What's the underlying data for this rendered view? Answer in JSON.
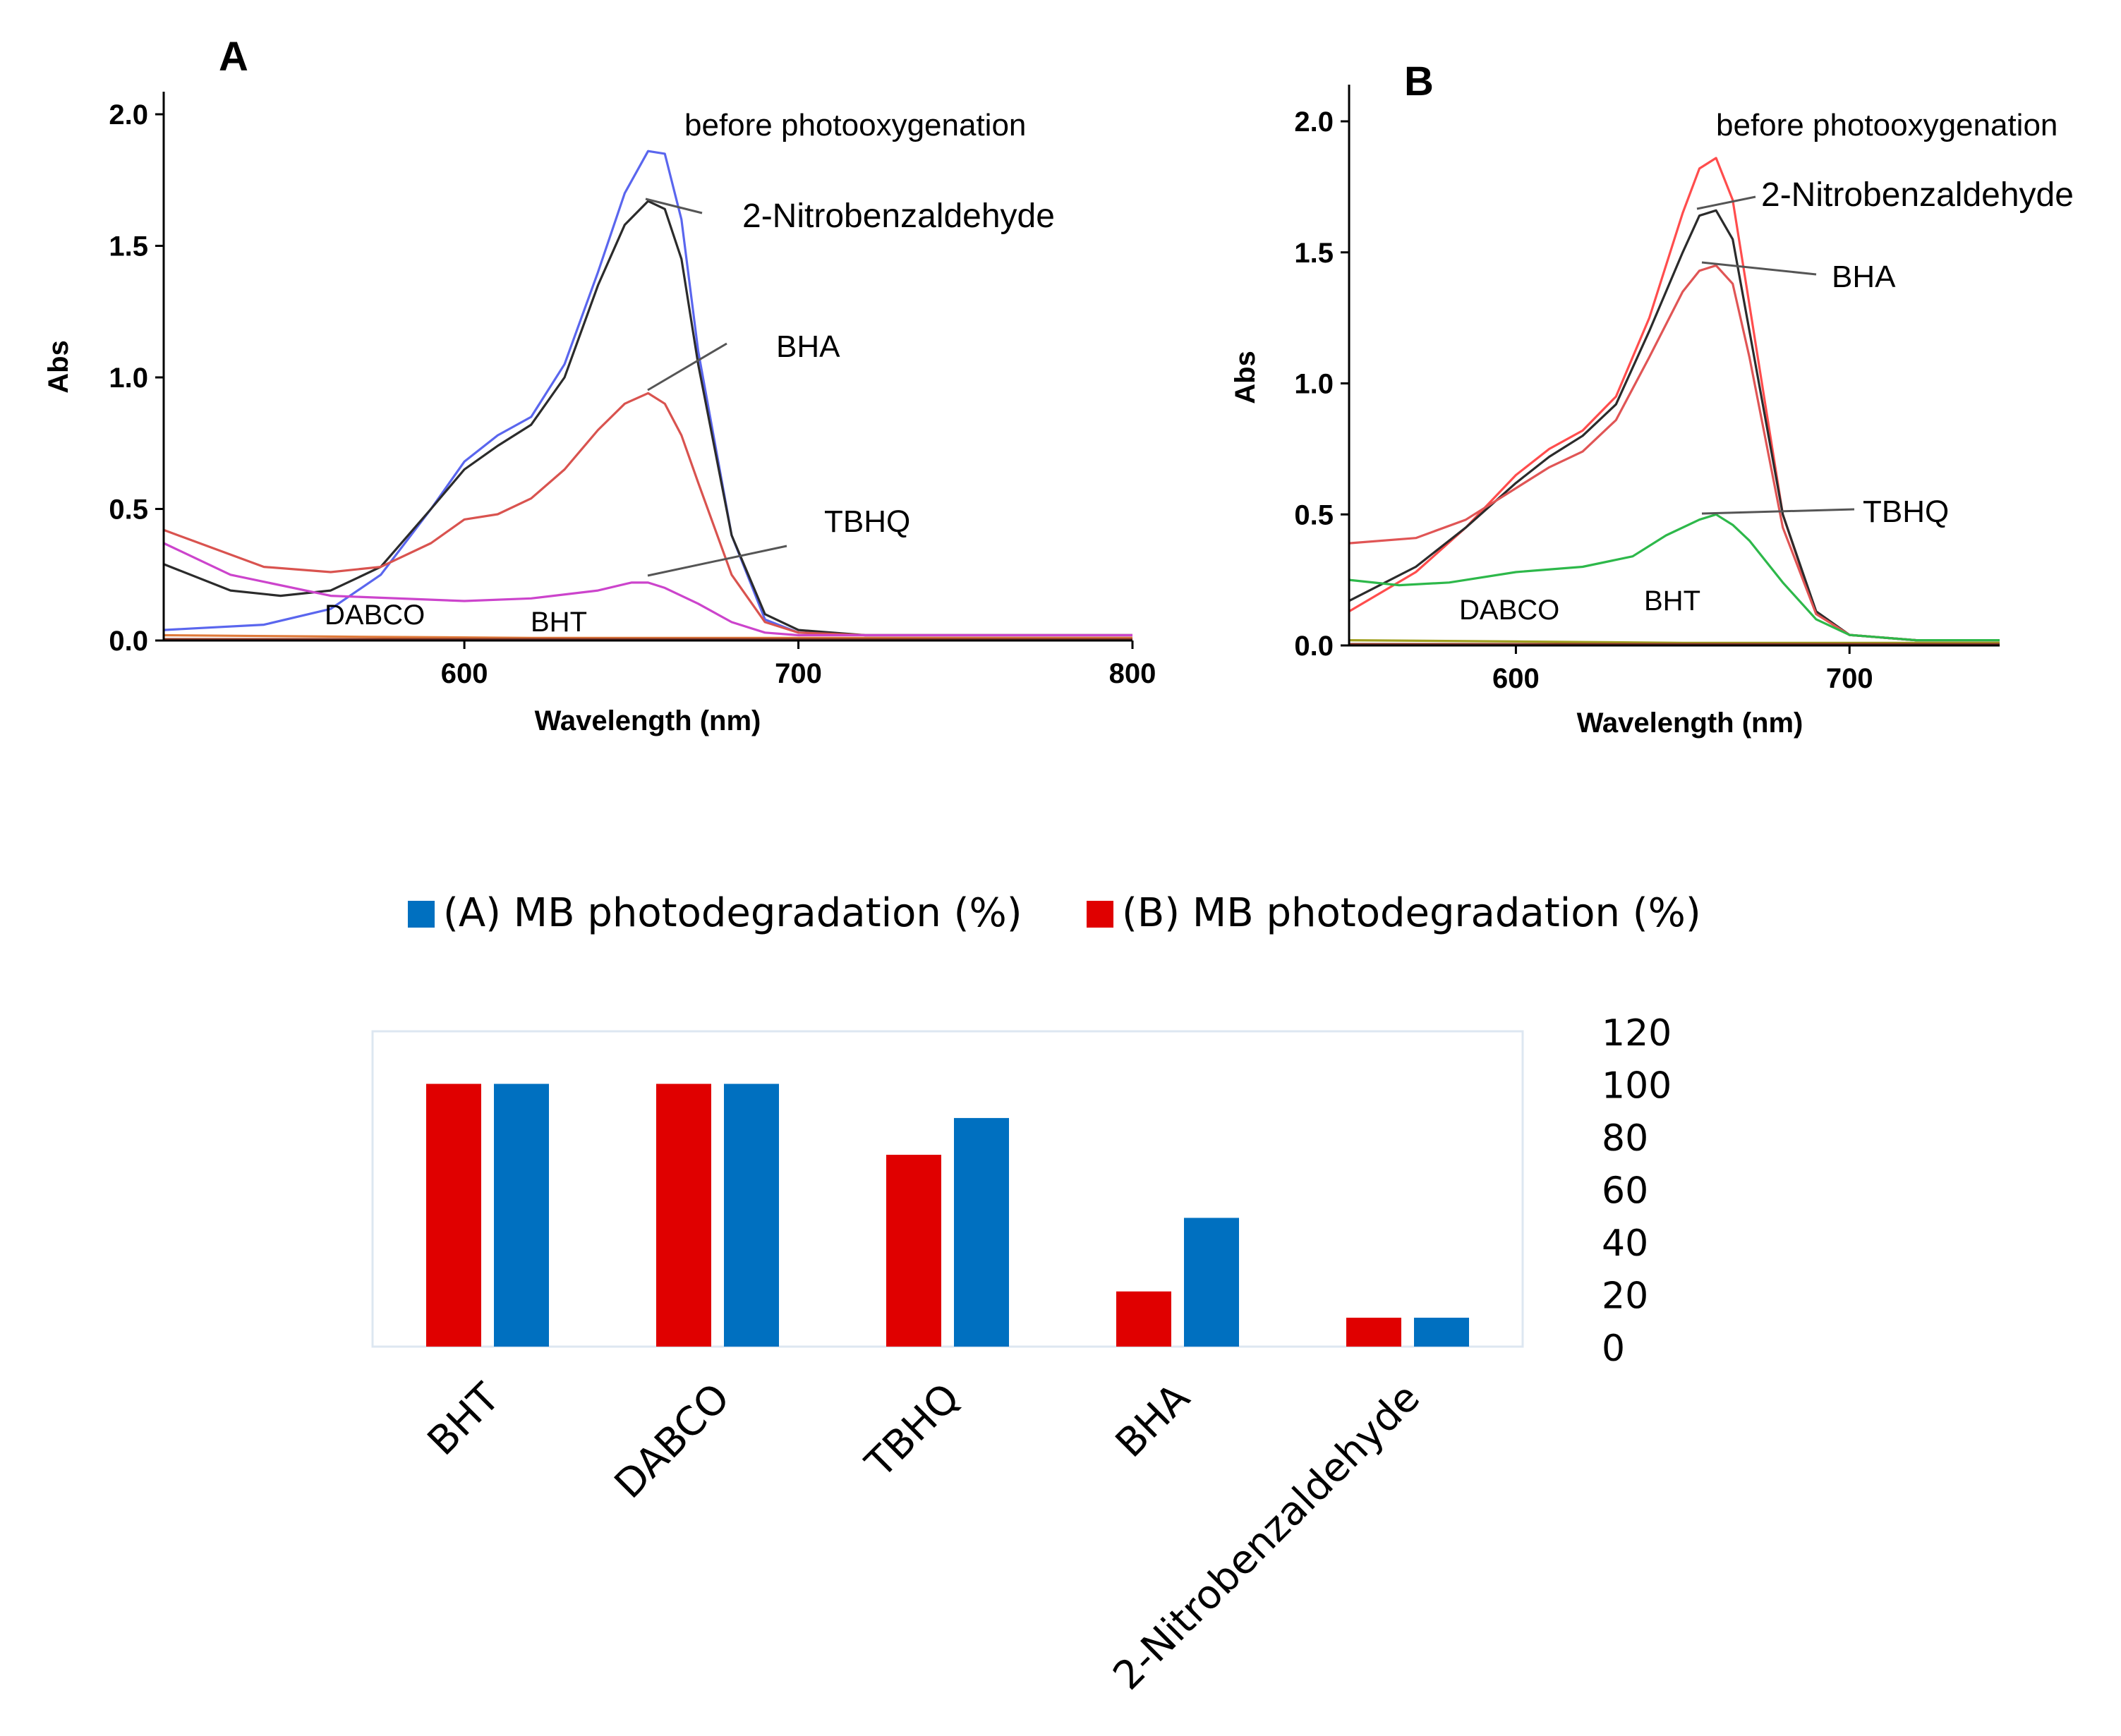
{
  "chart_data": [
    {
      "type": "line",
      "panel_label": "A",
      "xlabel": "Wavelength (nm)",
      "ylabel": "Abs",
      "xlim": [
        510,
        800
      ],
      "ylim": [
        0,
        2.0
      ],
      "xticks": [
        "600",
        "700",
        "800"
      ],
      "xtick_values": [
        600,
        700,
        800
      ],
      "yticks": [
        "0.0",
        "0.5",
        "1.0",
        "1.5",
        "2.0"
      ],
      "ytick_values": [
        0,
        0.5,
        1.0,
        1.5,
        2.0
      ],
      "series": [
        {
          "name": "before photooxygenation",
          "color": "#5a66ee",
          "x": [
            510,
            540,
            560,
            575,
            590,
            600,
            610,
            620,
            630,
            640,
            648,
            655,
            660,
            665,
            670,
            680,
            690,
            700,
            720,
            760,
            800
          ],
          "y": [
            0.04,
            0.06,
            0.12,
            0.25,
            0.5,
            0.68,
            0.78,
            0.85,
            1.05,
            1.4,
            1.7,
            1.86,
            1.85,
            1.6,
            1.1,
            0.4,
            0.08,
            0.03,
            0.02,
            0.02,
            0.02
          ]
        },
        {
          "name": "2-Nitrobenzaldehyde",
          "color": "#2b2b2b",
          "x": [
            510,
            530,
            545,
            560,
            575,
            590,
            600,
            610,
            620,
            630,
            640,
            648,
            655,
            660,
            665,
            670,
            680,
            690,
            700,
            720,
            760,
            800
          ],
          "y": [
            0.29,
            0.19,
            0.17,
            0.19,
            0.28,
            0.5,
            0.65,
            0.74,
            0.82,
            1.0,
            1.35,
            1.58,
            1.67,
            1.64,
            1.45,
            1.05,
            0.4,
            0.1,
            0.04,
            0.02,
            0.02,
            0.02
          ]
        },
        {
          "name": "BHA",
          "color": "#d9534f",
          "x": [
            510,
            540,
            560,
            575,
            590,
            600,
            610,
            620,
            630,
            640,
            648,
            655,
            660,
            665,
            670,
            680,
            690,
            700,
            720,
            760,
            800
          ],
          "y": [
            0.42,
            0.28,
            0.26,
            0.28,
            0.37,
            0.46,
            0.48,
            0.54,
            0.65,
            0.8,
            0.9,
            0.94,
            0.9,
            0.78,
            0.6,
            0.25,
            0.07,
            0.03,
            0.02,
            0.02,
            0.02
          ]
        },
        {
          "name": "TBHQ",
          "color": "#cc44cc",
          "x": [
            510,
            530,
            560,
            600,
            620,
            640,
            650,
            655,
            660,
            670,
            680,
            690,
            700,
            720,
            760,
            800
          ],
          "y": [
            0.37,
            0.25,
            0.17,
            0.15,
            0.16,
            0.19,
            0.22,
            0.22,
            0.2,
            0.14,
            0.07,
            0.03,
            0.02,
            0.02,
            0.02,
            0.02
          ]
        },
        {
          "name": "DABCO",
          "color": "#e07a3a",
          "x": [
            510,
            560,
            620,
            680,
            740,
            800
          ],
          "y": [
            0.02,
            0.015,
            0.01,
            0.01,
            0.01,
            0.01
          ]
        },
        {
          "name": "BHT",
          "color": "#8b3a2a",
          "x": [
            510,
            560,
            620,
            680,
            740,
            800
          ],
          "y": [
            0.005,
            0.005,
            0.005,
            0.005,
            0.005,
            0.005
          ]
        }
      ],
      "annotations": {
        "before": "before photooxygenation",
        "nitro": "2-Nitrobenzaldehyde",
        "bha": "BHA",
        "tbhq": "TBHQ",
        "dabco": "DABCO",
        "bht": "BHT"
      }
    },
    {
      "type": "line",
      "panel_label": "B",
      "xlabel": "Wavelength (nm)",
      "ylabel": "Abs",
      "xlim": [
        550,
        745
      ],
      "ylim": [
        0,
        2.0
      ],
      "xticks": [
        "600",
        "700"
      ],
      "xtick_values": [
        600,
        700
      ],
      "yticks": [
        "0.0",
        "0.5",
        "1.0",
        "1.5",
        "2.0"
      ],
      "ytick_values": [
        0,
        0.5,
        1.0,
        1.5,
        2.0
      ],
      "series": [
        {
          "name": "before photooxygenation",
          "color": "#ff4d4d",
          "x": [
            550,
            570,
            585,
            600,
            610,
            620,
            630,
            640,
            650,
            655,
            660,
            665,
            670,
            680,
            690,
            700,
            720,
            745
          ],
          "y": [
            0.13,
            0.28,
            0.45,
            0.65,
            0.75,
            0.82,
            0.95,
            1.25,
            1.65,
            1.82,
            1.86,
            1.7,
            1.3,
            0.5,
            0.12,
            0.04,
            0.02,
            0.02
          ]
        },
        {
          "name": "2-Nitrobenzaldehyde",
          "color": "#2b2b2b",
          "x": [
            550,
            570,
            585,
            600,
            610,
            620,
            630,
            640,
            650,
            655,
            660,
            665,
            670,
            680,
            690,
            700,
            720,
            745
          ],
          "y": [
            0.17,
            0.3,
            0.45,
            0.62,
            0.72,
            0.8,
            0.92,
            1.2,
            1.5,
            1.64,
            1.66,
            1.55,
            1.2,
            0.5,
            0.13,
            0.04,
            0.02,
            0.02
          ]
        },
        {
          "name": "BHA",
          "color": "#e05555",
          "x": [
            550,
            570,
            585,
            600,
            610,
            620,
            630,
            640,
            650,
            655,
            660,
            665,
            670,
            680,
            690,
            700,
            720,
            745
          ],
          "y": [
            0.39,
            0.41,
            0.48,
            0.6,
            0.68,
            0.74,
            0.86,
            1.1,
            1.35,
            1.43,
            1.45,
            1.38,
            1.1,
            0.45,
            0.12,
            0.04,
            0.02,
            0.02
          ]
        },
        {
          "name": "TBHQ",
          "color": "#2db84a",
          "x": [
            550,
            565,
            580,
            600,
            620,
            635,
            645,
            655,
            660,
            665,
            670,
            680,
            690,
            700,
            720,
            745
          ],
          "y": [
            0.25,
            0.23,
            0.24,
            0.28,
            0.3,
            0.34,
            0.42,
            0.48,
            0.5,
            0.46,
            0.4,
            0.24,
            0.1,
            0.04,
            0.02,
            0.02
          ]
        },
        {
          "name": "DABCO",
          "color": "#a0a020",
          "x": [
            550,
            600,
            650,
            700,
            745
          ],
          "y": [
            0.02,
            0.015,
            0.01,
            0.01,
            0.01
          ]
        },
        {
          "name": "BHT",
          "color": "#8b3a2a",
          "x": [
            550,
            600,
            650,
            700,
            745
          ],
          "y": [
            0.005,
            0.005,
            0.005,
            0.005,
            0.005
          ]
        }
      ],
      "annotations": {
        "before": "before photooxygenation",
        "nitro": "2-Nitrobenzaldehyde",
        "bha": "BHA",
        "tbhq": "TBHQ",
        "dabco": "DABCO",
        "bht": "BHT"
      }
    },
    {
      "type": "bar",
      "categories": [
        "BHT",
        "DABCO",
        "TBHQ",
        "BHA",
        "2-Nitrobenzaldehyde"
      ],
      "series": [
        {
          "name": "(B) MB photodegradation (%)",
          "color": "#e00000",
          "values": [
            100,
            100,
            73,
            21,
            11
          ]
        },
        {
          "name": "(A) MB photodegradation (%)",
          "color": "#0070c0",
          "values": [
            100,
            100,
            87,
            49,
            11
          ]
        }
      ],
      "legend": [
        "(A) MB photodegradation (%)",
        "(B) MB photodegradation (%)"
      ],
      "legend_colors": [
        "#0070c0",
        "#e00000"
      ],
      "yticks": [
        "0",
        "20",
        "40",
        "60",
        "80",
        "100",
        "120"
      ],
      "ytick_values": [
        0,
        20,
        40,
        60,
        80,
        100,
        120
      ],
      "ylim": [
        0,
        120
      ],
      "axis_position": "right",
      "title": "",
      "xlabel": "",
      "ylabel": ""
    }
  ]
}
